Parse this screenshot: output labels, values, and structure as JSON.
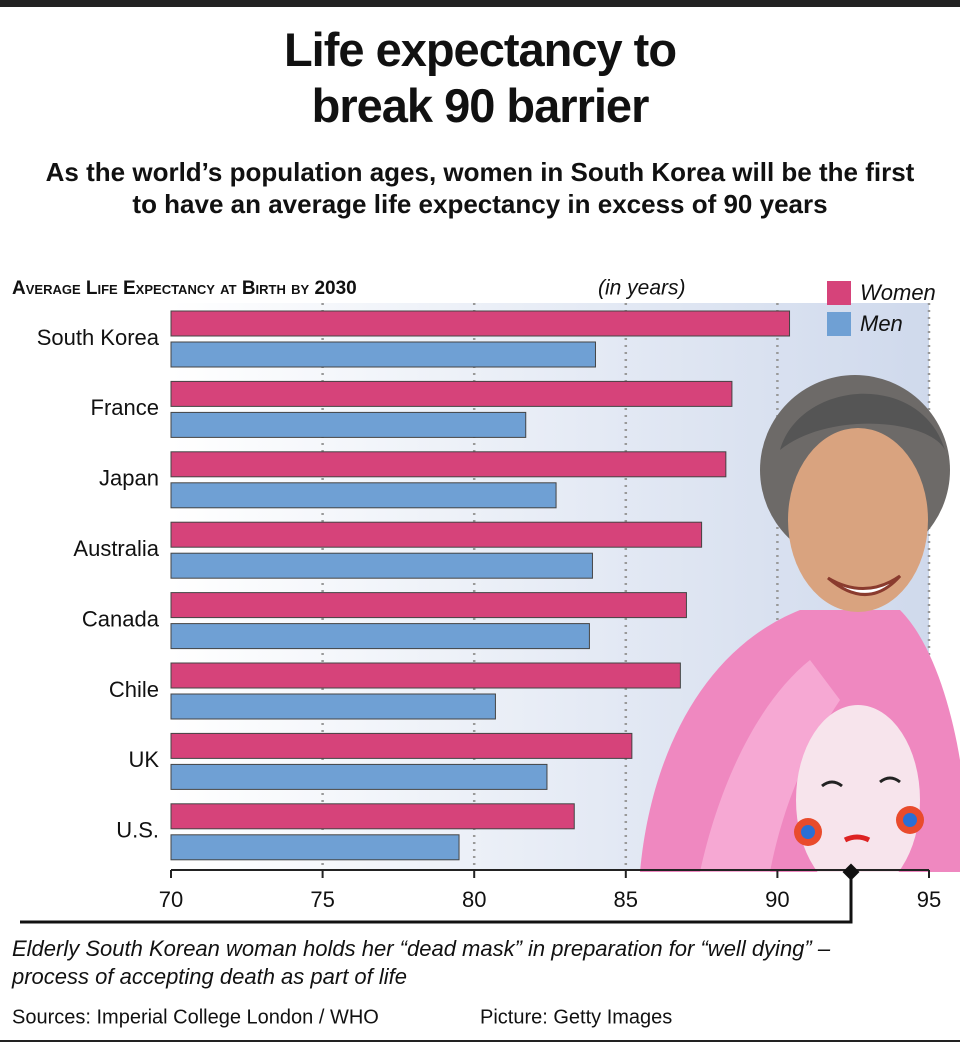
{
  "chart_data": {
    "type": "bar",
    "orientation": "horizontal",
    "title": "Life expectancy to break 90 barrier",
    "subtitle": "As the world’s population ages, women in South Korea will be the first to have an average life expectancy in excess of 90 years",
    "heading": "Average Life Expectancy at Birth by 2030",
    "unit": "(in years)",
    "categories": [
      "South Korea",
      "France",
      "Japan",
      "Australia",
      "Canada",
      "Chile",
      "UK",
      "U.S."
    ],
    "series": [
      {
        "name": "Women",
        "color": "#d6437a",
        "values": [
          90.4,
          88.5,
          88.3,
          87.5,
          87.0,
          86.8,
          85.2,
          83.3
        ]
      },
      {
        "name": "Men",
        "color": "#6fa0d4",
        "values": [
          84.0,
          81.7,
          82.7,
          83.9,
          83.8,
          80.7,
          82.4,
          79.5
        ]
      }
    ],
    "xlim": [
      70,
      95
    ],
    "xticks": [
      70,
      75,
      80,
      85,
      90,
      95
    ],
    "grid": true,
    "legend": "top-right",
    "caption": "Elderly South Korean woman holds her “dead mask” in preparation for “well dying” – process of accepting death as part of life",
    "sources": "Sources: Imperial College London / WHO",
    "picture": "Picture: Getty Images"
  }
}
